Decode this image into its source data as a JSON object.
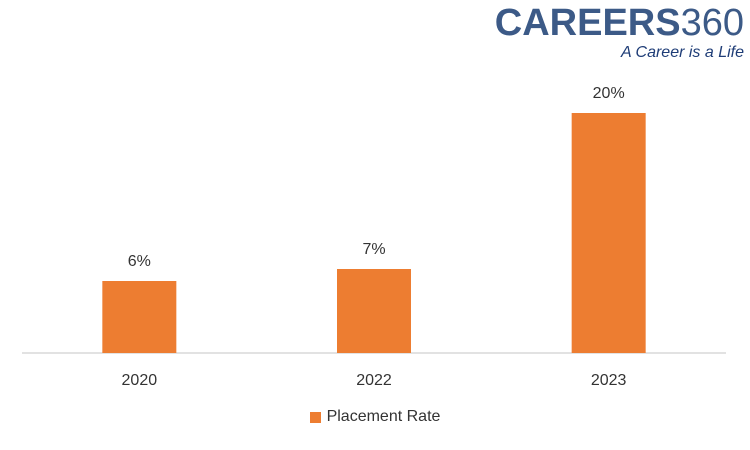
{
  "brand": {
    "name_part1": "CAREERS",
    "name_part2": "360",
    "tagline": "A Career is a Life"
  },
  "chart_data": {
    "type": "bar",
    "categories": [
      "2020",
      "2022",
      "2023"
    ],
    "series": [
      {
        "name": "Placement Rate",
        "values": [
          6,
          7,
          20
        ],
        "labels": [
          "6%",
          "7%",
          "20%"
        ],
        "color": "#ed7d31"
      }
    ],
    "ylim": [
      0,
      25
    ],
    "grid": false,
    "legend_position": "bottom",
    "axis_color": "#d9d9d9"
  }
}
